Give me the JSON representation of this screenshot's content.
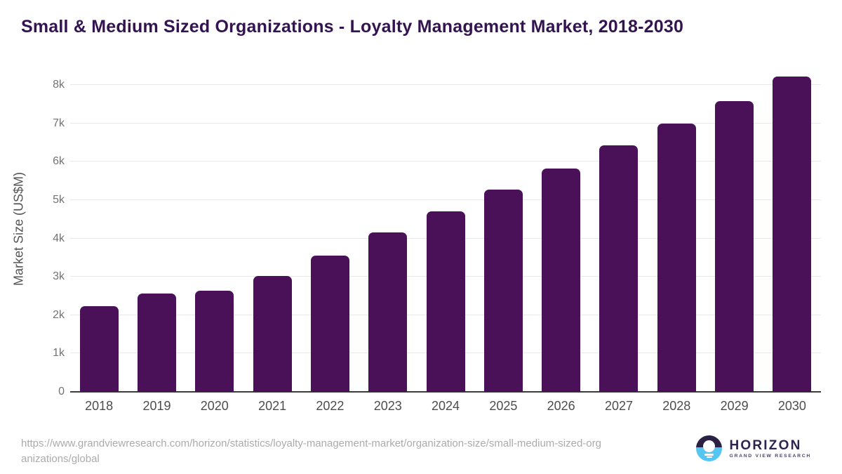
{
  "title": "Small & Medium Sized Organizations - Loyalty Management Market, 2018-2030",
  "chart_data": {
    "type": "bar",
    "title": "Small & Medium Sized Organizations - Loyalty Management Market, 2018-2030",
    "categories": [
      "2018",
      "2019",
      "2020",
      "2021",
      "2022",
      "2023",
      "2024",
      "2025",
      "2026",
      "2027",
      "2028",
      "2029",
      "2030"
    ],
    "values": [
      2240,
      2560,
      2630,
      3020,
      3550,
      4150,
      4700,
      5280,
      5830,
      6430,
      7000,
      7590,
      8220
    ],
    "xlabel": "",
    "ylabel": "Market Size (US$M)",
    "ylim": [
      0,
      8500
    ],
    "yticks": [
      {
        "value": 0,
        "label": "0"
      },
      {
        "value": 1000,
        "label": "1k"
      },
      {
        "value": 2000,
        "label": "2k"
      },
      {
        "value": 3000,
        "label": "3k"
      },
      {
        "value": 4000,
        "label": "4k"
      },
      {
        "value": 5000,
        "label": "5k"
      },
      {
        "value": 6000,
        "label": "6k"
      },
      {
        "value": 7000,
        "label": "7k"
      },
      {
        "value": 8000,
        "label": "8k"
      }
    ],
    "grid": true,
    "legend": false,
    "bar_color": "#4a1158"
  },
  "footer": {
    "source_url": "https://www.grandviewresearch.com/horizon/statistics/loyalty-management-market/organization-size/small-medium-sized-organizations/global",
    "logo": {
      "name": "HORIZON",
      "subtext": "GRAND VIEW RESEARCH"
    }
  },
  "colors": {
    "title_text": "#331450",
    "bar": "#4a1158",
    "axis_line": "#3d3d3d",
    "gridline": "#e8e8e8",
    "tick_text": "#737373",
    "x_label_text": "#4d4d4d",
    "url_text": "#ababab",
    "logo_dark": "#2b2145",
    "logo_blue": "#56c5f2"
  }
}
